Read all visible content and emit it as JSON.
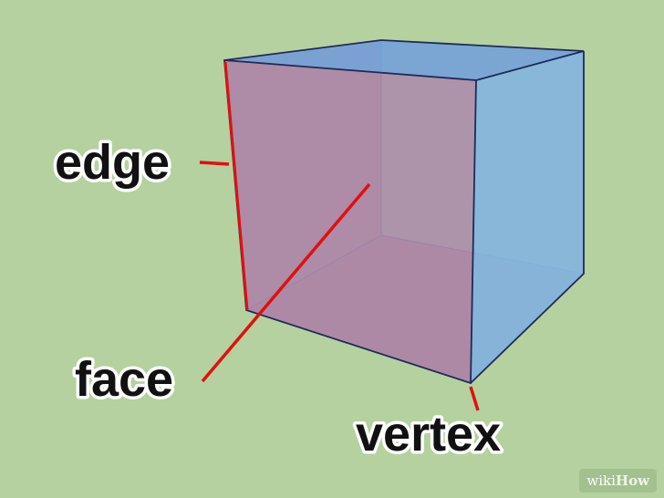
{
  "labels": {
    "edge": "edge",
    "face": "face",
    "vertex": "vertex"
  },
  "watermark": {
    "wiki": "wiki",
    "how": "How"
  },
  "colors": {
    "background": "#b5d1a0",
    "front_face": "#b08aa6",
    "side_face": "#86b6dc",
    "top_face": "#77a3d6",
    "edge_line": "#1e2a58",
    "pointer": "#e01010"
  }
}
